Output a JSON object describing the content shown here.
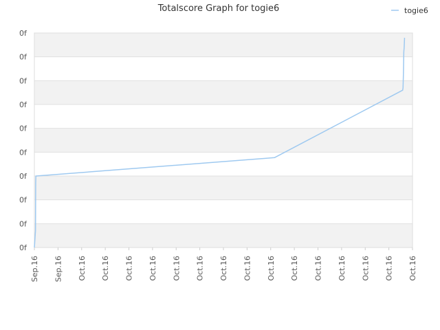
{
  "chart_data": {
    "type": "line",
    "title": "Totalscore Graph for togie6",
    "legend": {
      "placement": "top-right"
    },
    "grid": true,
    "y_tick_labels": [
      "0f",
      "0f",
      "0f",
      "0f",
      "0f",
      "0f",
      "0f",
      "0f",
      "0f",
      "0f"
    ],
    "x_tick_labels": [
      "Sep.16",
      "Sep.16",
      "Oct.16",
      "Oct.16",
      "Oct.16",
      "Oct.16",
      "Oct.16",
      "Oct.16",
      "Oct.16",
      "Oct.16",
      "Oct.16",
      "Oct.16",
      "Oct.16",
      "Oct.16",
      "Oct.16",
      "Oct.16",
      "Oct.16"
    ],
    "xlim": [
      0,
      100
    ],
    "ylim": [
      0,
      9
    ],
    "series": [
      {
        "name": "togie6",
        "color": "#9ec9f0",
        "x": [
          0.0,
          0.25,
          0.3,
          0.35,
          0.4,
          0.45,
          0.5,
          63.5,
          97.4,
          97.5,
          97.6,
          97.7,
          97.8,
          97.9
        ],
        "y": [
          0.0,
          0.6,
          0.7,
          2.7,
          3.0,
          3.0,
          3.0,
          3.77,
          6.6,
          6.7,
          7.3,
          8.2,
          8.4,
          8.8
        ]
      }
    ]
  }
}
